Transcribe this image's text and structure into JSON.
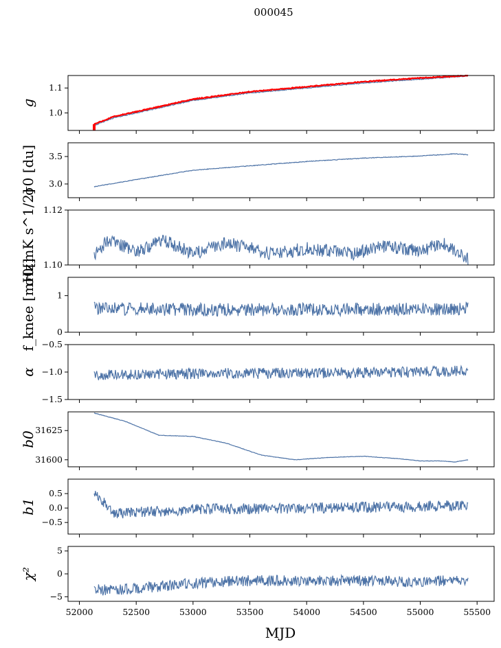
{
  "figure": {
    "suptitle": "000045",
    "xlabel": "MJD"
  },
  "chart_data": [
    {
      "type": "line",
      "ylabel": "g",
      "xlim": [
        51900,
        55650
      ],
      "ylim": [
        0.93,
        1.15
      ],
      "yticks": [
        1.0,
        1.1
      ],
      "ytick_labels": [
        "1.0",
        "1.1"
      ],
      "xtick_labels_shown": false,
      "series": [
        {
          "color": "#4c72a6",
          "x": [
            52130,
            52300,
            52600,
            53000,
            53500,
            54000,
            54500,
            55000,
            55420
          ],
          "y": [
            0.95,
            0.98,
            1.01,
            1.05,
            1.08,
            1.1,
            1.12,
            1.135,
            1.148
          ]
        },
        {
          "color": "#ff0000",
          "x": [
            52130,
            52300,
            52600,
            53000,
            53500,
            54000,
            54500,
            55000,
            55420
          ],
          "y": [
            0.955,
            0.985,
            1.015,
            1.055,
            1.085,
            1.105,
            1.125,
            1.14,
            1.15
          ]
        }
      ]
    },
    {
      "type": "line",
      "ylabel": "σ0 [du]",
      "xlim": [
        51900,
        55650
      ],
      "ylim": [
        2.75,
        3.75
      ],
      "yticks": [
        3.0,
        3.5
      ],
      "ytick_labels": [
        "3.0",
        "3.5"
      ],
      "series": [
        {
          "color": "#4c72a6",
          "x": [
            52130,
            52500,
            53000,
            53500,
            54000,
            54500,
            55000,
            55300,
            55420
          ],
          "y": [
            2.95,
            3.08,
            3.25,
            3.33,
            3.41,
            3.47,
            3.51,
            3.55,
            3.53
          ]
        }
      ]
    },
    {
      "type": "line",
      "ylabel": "σ0[mK s^1/2]",
      "xlim": [
        51900,
        55650
      ],
      "ylim": [
        1.1,
        1.12
      ],
      "yticks": [
        1.1,
        1.12
      ],
      "ytick_labels": [
        "1.10",
        "1.12"
      ],
      "series": [
        {
          "color": "#4c72a6",
          "x": [
            52130,
            52250,
            52500,
            52750,
            53000,
            53300,
            53700,
            54000,
            54400,
            54700,
            55000,
            55200,
            55420
          ],
          "y": [
            1.104,
            1.109,
            1.105,
            1.109,
            1.104,
            1.108,
            1.104,
            1.106,
            1.104,
            1.107,
            1.105,
            1.108,
            1.102
          ]
        }
      ]
    },
    {
      "type": "line",
      "ylabel": "f_knee [mHz]",
      "xlim": [
        51900,
        55650
      ],
      "ylim": [
        0,
        1.5
      ],
      "yticks": [
        0,
        1
      ],
      "ytick_labels": [
        "0",
        "1"
      ],
      "series": [
        {
          "color": "#4c72a6",
          "x": [
            52130,
            53000,
            54000,
            55000,
            55420
          ],
          "y": [
            0.65,
            0.62,
            0.62,
            0.63,
            0.65
          ]
        }
      ]
    },
    {
      "type": "line",
      "ylabel": "α",
      "xlim": [
        51900,
        55650
      ],
      "ylim": [
        -1.5,
        -0.5
      ],
      "yticks": [
        -1.5,
        -1.0,
        -0.5
      ],
      "ytick_labels": [
        "−1.5",
        "−1.0",
        "−0.5"
      ],
      "series": [
        {
          "color": "#4c72a6",
          "x": [
            52130,
            53000,
            54000,
            55000,
            55420
          ],
          "y": [
            -1.05,
            -1.03,
            -1.02,
            -1.0,
            -0.98
          ]
        }
      ]
    },
    {
      "type": "line",
      "ylabel": "b0",
      "xlim": [
        51900,
        55650
      ],
      "ylim": [
        31594,
        31641
      ],
      "yticks": [
        31600,
        31625
      ],
      "ytick_labels": [
        "31600",
        "31625"
      ],
      "series": [
        {
          "color": "#4c72a6",
          "x": [
            52130,
            52400,
            52700,
            53000,
            53300,
            53600,
            53900,
            54200,
            54500,
            54800,
            55000,
            55200,
            55300,
            55420
          ],
          "y": [
            31640,
            31633,
            31621,
            31620,
            31614,
            31604,
            31600,
            31602,
            31603,
            31601,
            31599,
            31599,
            31598,
            31600
          ]
        }
      ]
    },
    {
      "type": "line",
      "ylabel": "b1",
      "xlim": [
        51900,
        55650
      ],
      "ylim": [
        -0.9,
        1.0
      ],
      "yticks": [
        -0.5,
        0.0,
        0.5
      ],
      "ytick_labels": [
        "−0.5",
        "0.0",
        "0.5"
      ],
      "series": [
        {
          "color": "#4c72a6",
          "x": [
            52130,
            52300,
            53000,
            54000,
            55000,
            55420
          ],
          "y": [
            0.6,
            -0.2,
            -0.05,
            0.0,
            0.05,
            0.1
          ]
        }
      ]
    },
    {
      "type": "line",
      "ylabel": "χ²",
      "xlim": [
        51900,
        55650
      ],
      "ylim": [
        -6,
        6
      ],
      "yticks": [
        -5,
        0,
        5
      ],
      "ytick_labels": [
        "−5",
        "0",
        "5"
      ],
      "xticks": [
        52000,
        52500,
        53000,
        53500,
        54000,
        54500,
        55000,
        55500
      ],
      "xtick_labels": [
        "52000",
        "52500",
        "53000",
        "53500",
        "54000",
        "54500",
        "55000",
        "55500"
      ],
      "series": [
        {
          "color": "#4c72a6",
          "x": [
            52130,
            52300,
            52600,
            53000,
            53500,
            54000,
            54500,
            55000,
            55420
          ],
          "y": [
            -3.5,
            -3.5,
            -3.0,
            -2.0,
            -1.5,
            -1.5,
            -1.5,
            -1.8,
            -1.2
          ]
        }
      ]
    }
  ]
}
